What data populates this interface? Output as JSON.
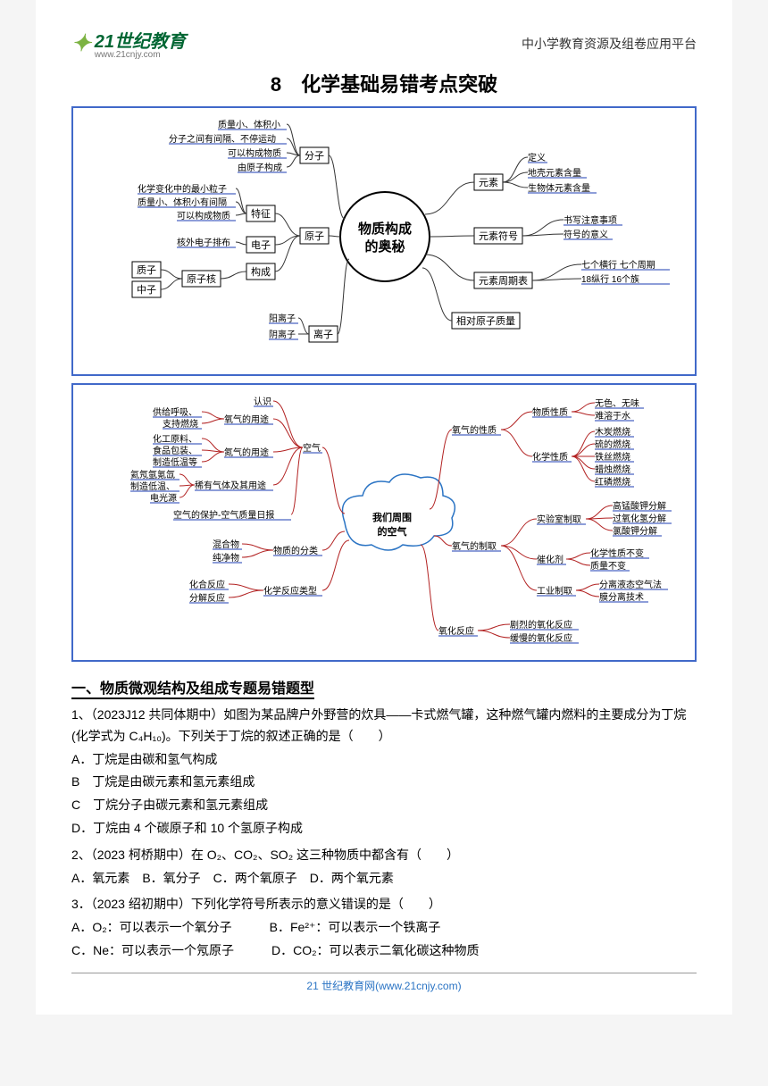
{
  "header": {
    "logo_brand": "21世纪教育",
    "logo_domain": "www.21cnjy.com",
    "right_text": "中小学教育资源及组卷应用平台"
  },
  "title": "8　化学基础易错考点突破",
  "mindmap1": {
    "type": "mindmap",
    "center": "物质构成\n的奥秘",
    "center_shape": "circle",
    "center_border": "#000000",
    "center_fill": "#ffffff",
    "colors": {
      "border": "#4169c9",
      "box_border": "#000000",
      "link": "#333333",
      "leaf_underline": "#4a64c2"
    },
    "left": {
      "branches": [
        {
          "label": "分子",
          "children": [
            "质量小、体积小",
            "分子之间有间隔、不停运动",
            "可以构成物质",
            "由原子构成"
          ]
        },
        {
          "label": "原子",
          "sub": [
            {
              "label": "特征",
              "children": [
                "化学变化中的最小粒子",
                "质量小、体积小有间隔",
                "可以构成物质"
              ]
            },
            {
              "label": "电子",
              "children": [
                "核外电子排布"
              ]
            },
            {
              "label": "构成",
              "sub": [
                {
                  "label": "原子核",
                  "children": [
                    "质子",
                    "中子"
                  ]
                }
              ]
            }
          ]
        },
        {
          "label": "离子",
          "children": [
            "阳离子",
            "阴离子"
          ]
        }
      ]
    },
    "right": {
      "branches": [
        {
          "label": "元素",
          "children": [
            "定义",
            "地壳元素含量",
            "生物体元素含量"
          ]
        },
        {
          "label": "元素符号",
          "children": [
            "书写注意事项",
            "符号的意义"
          ]
        },
        {
          "label": "元素周期表",
          "children": [
            "七个横行 七个周期",
            "18纵行 16个族"
          ]
        },
        {
          "label": "相对原子质量",
          "children": []
        }
      ]
    }
  },
  "mindmap2": {
    "type": "mindmap-cloud",
    "center": "我们周围\n的空气",
    "center_border": "#2b74c4",
    "center_fill": "#ffffff",
    "colors": {
      "border": "#4169c9",
      "link_left": "#b22222",
      "link_right": "#b22222",
      "leaf_underline": "#4a64c2"
    },
    "left": [
      {
        "label": "空气",
        "color": "#b22222",
        "sub": [
          {
            "label": "认识"
          },
          {
            "label": "氧气的用途",
            "children": [
              "供给呼吸、",
              "支持燃烧"
            ]
          },
          {
            "label": "氮气的用途",
            "children": [
              "化工原料、",
              "食品包装、",
              "制造低温等"
            ]
          },
          {
            "label": "稀有气体及其用途",
            "children": [
              "氦氖氩氪氙",
              "制造低温、",
              "电光源"
            ]
          },
          {
            "label": "空气的保护-空气质量日报"
          }
        ]
      },
      {
        "label": "物质的分类",
        "color": "#b22222",
        "children": [
          "混合物",
          "纯净物"
        ]
      },
      {
        "label": "化学反应类型",
        "color": "#b22222",
        "children": [
          "化合反应",
          "分解反应"
        ]
      }
    ],
    "right": [
      {
        "label": "氧气的性质",
        "color": "#b22222",
        "sub": [
          {
            "label": "物质性质",
            "children": [
              "无色、无味",
              "难溶于水"
            ]
          },
          {
            "label": "化学性质",
            "children": [
              "木炭燃烧",
              "硫的燃烧",
              "铁丝燃烧",
              "蜡烛燃烧",
              "红磷燃烧"
            ]
          }
        ]
      },
      {
        "label": "氧气的制取",
        "color": "#b22222",
        "sub": [
          {
            "label": "实验室制取",
            "children": [
              "高锰酸钾分解",
              "过氧化氢分解",
              "氯酸钾分解"
            ]
          },
          {
            "label": "催化剂",
            "children": [
              "化学性质不变",
              "质量不变"
            ]
          },
          {
            "label": "工业制取",
            "children": [
              "分离液态空气法",
              "膜分离技术"
            ]
          }
        ]
      },
      {
        "label": "氧化反应",
        "color": "#b22222",
        "children": [
          "剧烈的氧化反应",
          "缓慢的氧化反应"
        ]
      }
    ]
  },
  "section_heading": "一、物质微观结构及组成专题易错题型",
  "q1": {
    "stem": "1、（2023J12 共同体期中）如图为某品牌户外野营的炊具——卡式燃气罐，这种燃气罐内燃料的主要成分为丁烷(化学式为 C₄H₁₀)。下列关于丁烷的叙述正确的是（　　）",
    "options": [
      "A．丁烷是由碳和氢气构成",
      "B　丁烷是由碳元素和氢元素组成",
      "C　丁烷分子由碳元素和氢元素组成",
      "D．丁烷由 4 个碳原子和 10 个氢原子构成"
    ]
  },
  "q2": {
    "stem": "2、（2023 柯桥期中）在 O₂、CO₂、SO₂ 这三种物质中都含有（　　）",
    "options_line": "A．氧元素　B．氧分子　C．两个氧原子　D．两个氧元素"
  },
  "q3": {
    "stem": "3．（2023 绍初期中）下列化学符号所表示的意义错误的是（　　）",
    "line1": "A．O₂：可以表示一个氧分子　　　B．Fe²⁺：可以表示一个铁离子",
    "line2": "C．Ne：可以表示一个氖原子　　　D．CO₂：可以表示二氧化碳这种物质"
  },
  "footer": "21 世纪教育网(www.21cnjy.com)"
}
